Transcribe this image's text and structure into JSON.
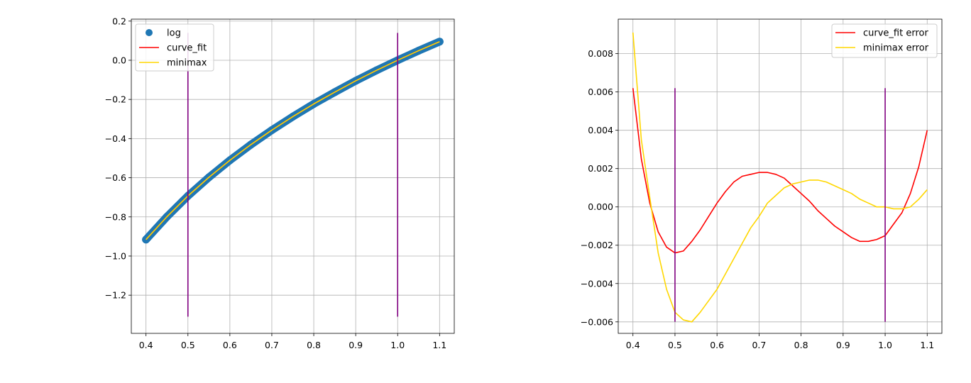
{
  "chart_data": [
    {
      "type": "line",
      "title": "",
      "xlabel": "",
      "ylabel": "",
      "xlim": [
        0.365,
        1.135
      ],
      "ylim": [
        -1.395,
        0.21
      ],
      "xticks": [
        0.4,
        0.5,
        0.6,
        0.7,
        0.8,
        0.9,
        1.0,
        1.1
      ],
      "xtick_labels": [
        "0.4",
        "0.5",
        "0.6",
        "0.7",
        "0.8",
        "0.9",
        "1.0",
        "1.1"
      ],
      "yticks": [
        0.2,
        0.0,
        -0.2,
        -0.4,
        -0.6,
        -0.8,
        -1.0,
        -1.2
      ],
      "ytick_labels": [
        "0.2",
        "0.0",
        "−0.2",
        "−0.4",
        "−0.6",
        "−0.8",
        "−1.0",
        "−1.2"
      ],
      "grid": true,
      "legend_position": "top-left",
      "series": [
        {
          "name": "log",
          "kind": "scatter",
          "color": "#1f77b4",
          "x": [
            0.4,
            0.45,
            0.5,
            0.55,
            0.6,
            0.65,
            0.7,
            0.75,
            0.8,
            0.85,
            0.9,
            0.95,
            1.0,
            1.05,
            1.1
          ],
          "y": [
            -0.916,
            -0.799,
            -0.693,
            -0.598,
            -0.511,
            -0.431,
            -0.357,
            -0.288,
            -0.223,
            -0.163,
            -0.105,
            -0.051,
            0.0,
            0.049,
            0.095
          ]
        },
        {
          "name": "curve_fit",
          "kind": "line",
          "color": "#ff0000",
          "x": [
            0.4,
            0.45,
            0.5,
            0.55,
            0.6,
            0.65,
            0.7,
            0.75,
            0.8,
            0.85,
            0.9,
            0.95,
            1.0,
            1.05,
            1.1
          ],
          "y": [
            -0.916,
            -0.799,
            -0.693,
            -0.598,
            -0.511,
            -0.431,
            -0.357,
            -0.288,
            -0.223,
            -0.163,
            -0.105,
            -0.051,
            0.0,
            0.049,
            0.095
          ]
        },
        {
          "name": "minimax",
          "kind": "line",
          "color": "#ffd700",
          "x": [
            0.4,
            0.45,
            0.5,
            0.55,
            0.6,
            0.65,
            0.7,
            0.75,
            0.8,
            0.85,
            0.9,
            0.95,
            1.0,
            1.05,
            1.1
          ],
          "y": [
            -0.916,
            -0.799,
            -0.693,
            -0.598,
            -0.511,
            -0.431,
            -0.357,
            -0.288,
            -0.223,
            -0.163,
            -0.105,
            -0.051,
            0.0,
            0.049,
            0.095
          ]
        }
      ],
      "vlines": [
        {
          "x": 0.5,
          "ymin": -1.31,
          "ymax": 0.14,
          "color": "#800080"
        },
        {
          "x": 1.0,
          "ymin": -1.31,
          "ymax": 0.14,
          "color": "#800080"
        }
      ]
    },
    {
      "type": "line",
      "title": "",
      "xlabel": "",
      "ylabel": "",
      "xlim": [
        0.365,
        1.135
      ],
      "ylim": [
        -0.0066,
        0.0098
      ],
      "xticks": [
        0.4,
        0.5,
        0.6,
        0.7,
        0.8,
        0.9,
        1.0,
        1.1
      ],
      "xtick_labels": [
        "0.4",
        "0.5",
        "0.6",
        "0.7",
        "0.8",
        "0.9",
        "1.0",
        "1.1"
      ],
      "yticks": [
        0.008,
        0.006,
        0.004,
        0.002,
        0.0,
        -0.002,
        -0.004,
        -0.006
      ],
      "ytick_labels": [
        "0.008",
        "0.006",
        "0.004",
        "0.002",
        "0.000",
        "−0.002",
        "−0.004",
        "−0.006"
      ],
      "grid": true,
      "legend_position": "top-right",
      "series": [
        {
          "name": "curve_fit error",
          "kind": "line",
          "color": "#ff0000",
          "x": [
            0.4,
            0.42,
            0.44,
            0.46,
            0.48,
            0.5,
            0.52,
            0.54,
            0.56,
            0.58,
            0.6,
            0.62,
            0.64,
            0.66,
            0.68,
            0.7,
            0.72,
            0.74,
            0.76,
            0.78,
            0.8,
            0.82,
            0.84,
            0.86,
            0.88,
            0.9,
            0.92,
            0.94,
            0.96,
            0.98,
            1.0,
            1.02,
            1.04,
            1.06,
            1.08,
            1.1
          ],
          "y": [
            0.0062,
            0.0025,
            0.0002,
            -0.0013,
            -0.0021,
            -0.0024,
            -0.0023,
            -0.0018,
            -0.0012,
            -0.0005,
            0.0002,
            0.0008,
            0.0013,
            0.0016,
            0.0017,
            0.0018,
            0.0018,
            0.0017,
            0.0015,
            0.0011,
            0.0007,
            0.0003,
            -0.0002,
            -0.0006,
            -0.001,
            -0.0013,
            -0.0016,
            -0.0018,
            -0.0018,
            -0.0017,
            -0.0015,
            -0.0009,
            -0.0003,
            0.0007,
            0.0021,
            0.004
          ]
        },
        {
          "name": "minimax error",
          "kind": "line",
          "color": "#ffd700",
          "x": [
            0.4,
            0.42,
            0.44,
            0.46,
            0.48,
            0.5,
            0.52,
            0.54,
            0.56,
            0.58,
            0.6,
            0.62,
            0.64,
            0.66,
            0.68,
            0.7,
            0.72,
            0.74,
            0.76,
            0.78,
            0.8,
            0.82,
            0.84,
            0.86,
            0.88,
            0.9,
            0.92,
            0.94,
            0.96,
            0.98,
            1.0,
            1.02,
            1.04,
            1.06,
            1.08,
            1.1
          ],
          "y": [
            0.0091,
            0.0035,
            0.0005,
            -0.0024,
            -0.0043,
            -0.0055,
            -0.0059,
            -0.006,
            -0.0055,
            -0.0049,
            -0.0043,
            -0.0035,
            -0.0027,
            -0.0019,
            -0.0011,
            -0.0005,
            0.0002,
            0.0006,
            0.001,
            0.0012,
            0.0013,
            0.0014,
            0.0014,
            0.0013,
            0.0011,
            0.0009,
            0.0007,
            0.0004,
            0.0002,
            0.0,
            0.0,
            -0.0001,
            -0.0001,
            0.0,
            0.0004,
            0.0009
          ]
        }
      ],
      "vlines": [
        {
          "x": 0.5,
          "ymin": -0.006,
          "ymax": 0.0062,
          "color": "#800080"
        },
        {
          "x": 1.0,
          "ymin": -0.006,
          "ymax": 0.0062,
          "color": "#800080"
        }
      ]
    }
  ]
}
